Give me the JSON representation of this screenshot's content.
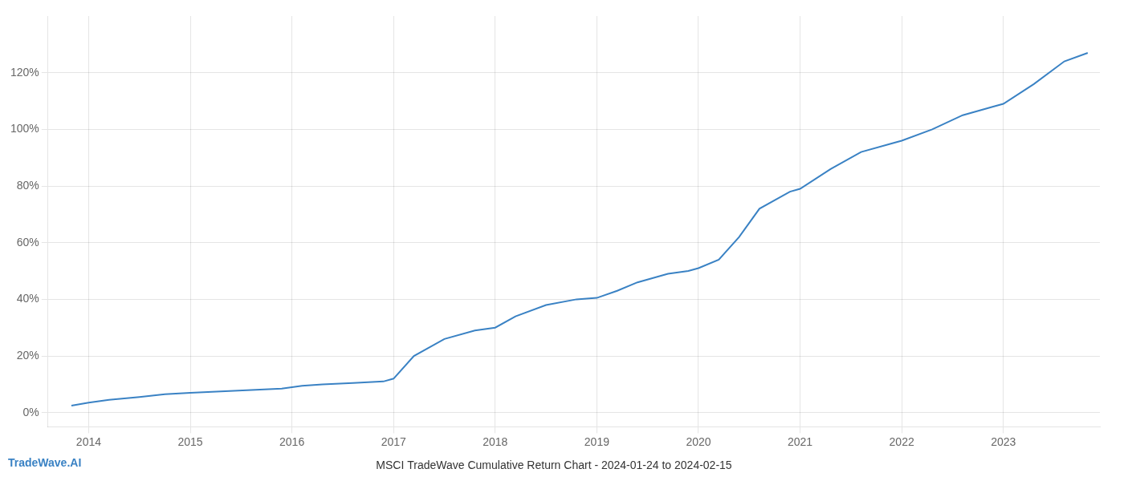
{
  "chart_data": {
    "type": "line",
    "title": "MSCI TradeWave Cumulative Return Chart - 2024-01-24 to 2024-02-15",
    "annotations": [
      "TradeWave.AI"
    ],
    "color": "#3a82c4",
    "grid": true,
    "x": [
      2013.83,
      2014.0,
      2014.2,
      2014.5,
      2014.75,
      2015.0,
      2015.3,
      2015.6,
      2015.9,
      2016.0,
      2016.1,
      2016.3,
      2016.6,
      2016.9,
      2017.0,
      2017.2,
      2017.5,
      2017.8,
      2018.0,
      2018.2,
      2018.5,
      2018.8,
      2019.0,
      2019.2,
      2019.4,
      2019.7,
      2019.9,
      2020.0,
      2020.2,
      2020.4,
      2020.6,
      2020.9,
      2021.0,
      2021.3,
      2021.6,
      2021.9,
      2022.0,
      2022.3,
      2022.6,
      2022.9,
      2023.0,
      2023.3,
      2023.6,
      2023.83
    ],
    "values": [
      2.5,
      3.5,
      4.5,
      5.5,
      6.5,
      7.0,
      7.5,
      8.0,
      8.5,
      9.0,
      9.5,
      10.0,
      10.5,
      11.0,
      12.0,
      20.0,
      26.0,
      29.0,
      30.0,
      34.0,
      38.0,
      40.0,
      40.5,
      43.0,
      46.0,
      49.0,
      50.0,
      51.0,
      54.0,
      62.0,
      72.0,
      78.0,
      79.0,
      86.0,
      92.0,
      95.0,
      96.0,
      100.0,
      105.0,
      108.0,
      109.0,
      116.0,
      124.0,
      127.0
    ],
    "xlim": [
      2013.6,
      2023.95
    ],
    "ylim": [
      -5,
      140
    ],
    "xticks": [
      2014,
      2015,
      2016,
      2017,
      2018,
      2019,
      2020,
      2021,
      2022,
      2023
    ],
    "yticks": [
      {
        "value": 0,
        "label": "0%"
      },
      {
        "value": 20,
        "label": "20%"
      },
      {
        "value": 40,
        "label": "40%"
      },
      {
        "value": 60,
        "label": "60%"
      },
      {
        "value": 80,
        "label": "80%"
      },
      {
        "value": 100,
        "label": "100%"
      },
      {
        "value": 120,
        "label": "120%"
      }
    ]
  }
}
